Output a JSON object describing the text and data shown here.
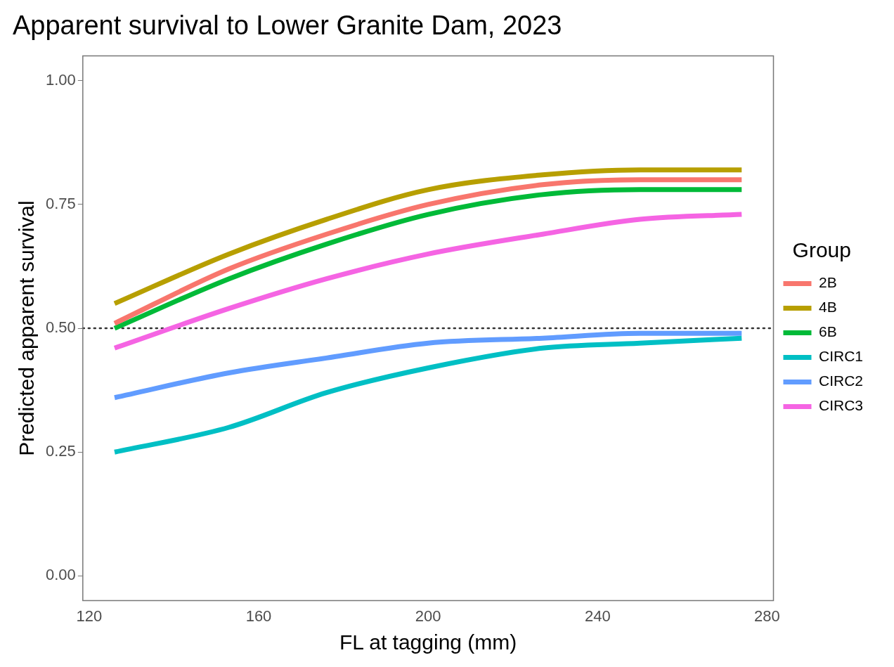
{
  "chart_data": {
    "type": "line",
    "title": "Apparent survival to Lower Granite Dam, 2023",
    "xlabel": "FL at tagging (mm)",
    "ylabel": "Predicted apparent survival",
    "legend_title": "Group",
    "legend": "right",
    "grid": false,
    "marker": "none",
    "line_style": "solid",
    "x": [
      126,
      153,
      176,
      200,
      227,
      250,
      274
    ],
    "xlim": [
      118.5,
      281.5
    ],
    "xticks": [
      120,
      160,
      200,
      240,
      280
    ],
    "ylim": [
      -0.05,
      1.05
    ],
    "yticks": [
      {
        "value": 0,
        "label": "0.00"
      },
      {
        "value": 0.25,
        "label": "0.25"
      },
      {
        "value": 0.5,
        "label": "0.50"
      },
      {
        "value": 0.75,
        "label": "0.75"
      },
      {
        "value": 1,
        "label": "1.00"
      }
    ],
    "ref_lines": [
      {
        "axis": "y",
        "value": 0.5,
        "line_style": "dotted",
        "color": "#333333"
      }
    ],
    "series": [
      {
        "name": "2B",
        "color": "#f8766d",
        "values": [
          0.51,
          0.62,
          0.69,
          0.75,
          0.79,
          0.8,
          0.8
        ]
      },
      {
        "name": "4B",
        "color": "#b79f00",
        "values": [
          0.55,
          0.65,
          0.72,
          0.78,
          0.81,
          0.82,
          0.82
        ]
      },
      {
        "name": "6B",
        "color": "#00ba38",
        "values": [
          0.5,
          0.6,
          0.67,
          0.73,
          0.77,
          0.78,
          0.78
        ]
      },
      {
        "name": "CIRC1",
        "color": "#00bfc4",
        "values": [
          0.25,
          0.3,
          0.37,
          0.42,
          0.46,
          0.47,
          0.48
        ]
      },
      {
        "name": "CIRC2",
        "color": "#619cff",
        "values": [
          0.36,
          0.41,
          0.44,
          0.47,
          0.48,
          0.49,
          0.49
        ]
      },
      {
        "name": "CIRC3",
        "color": "#f564e3",
        "values": [
          0.46,
          0.54,
          0.6,
          0.65,
          0.69,
          0.72,
          0.73
        ]
      }
    ]
  }
}
